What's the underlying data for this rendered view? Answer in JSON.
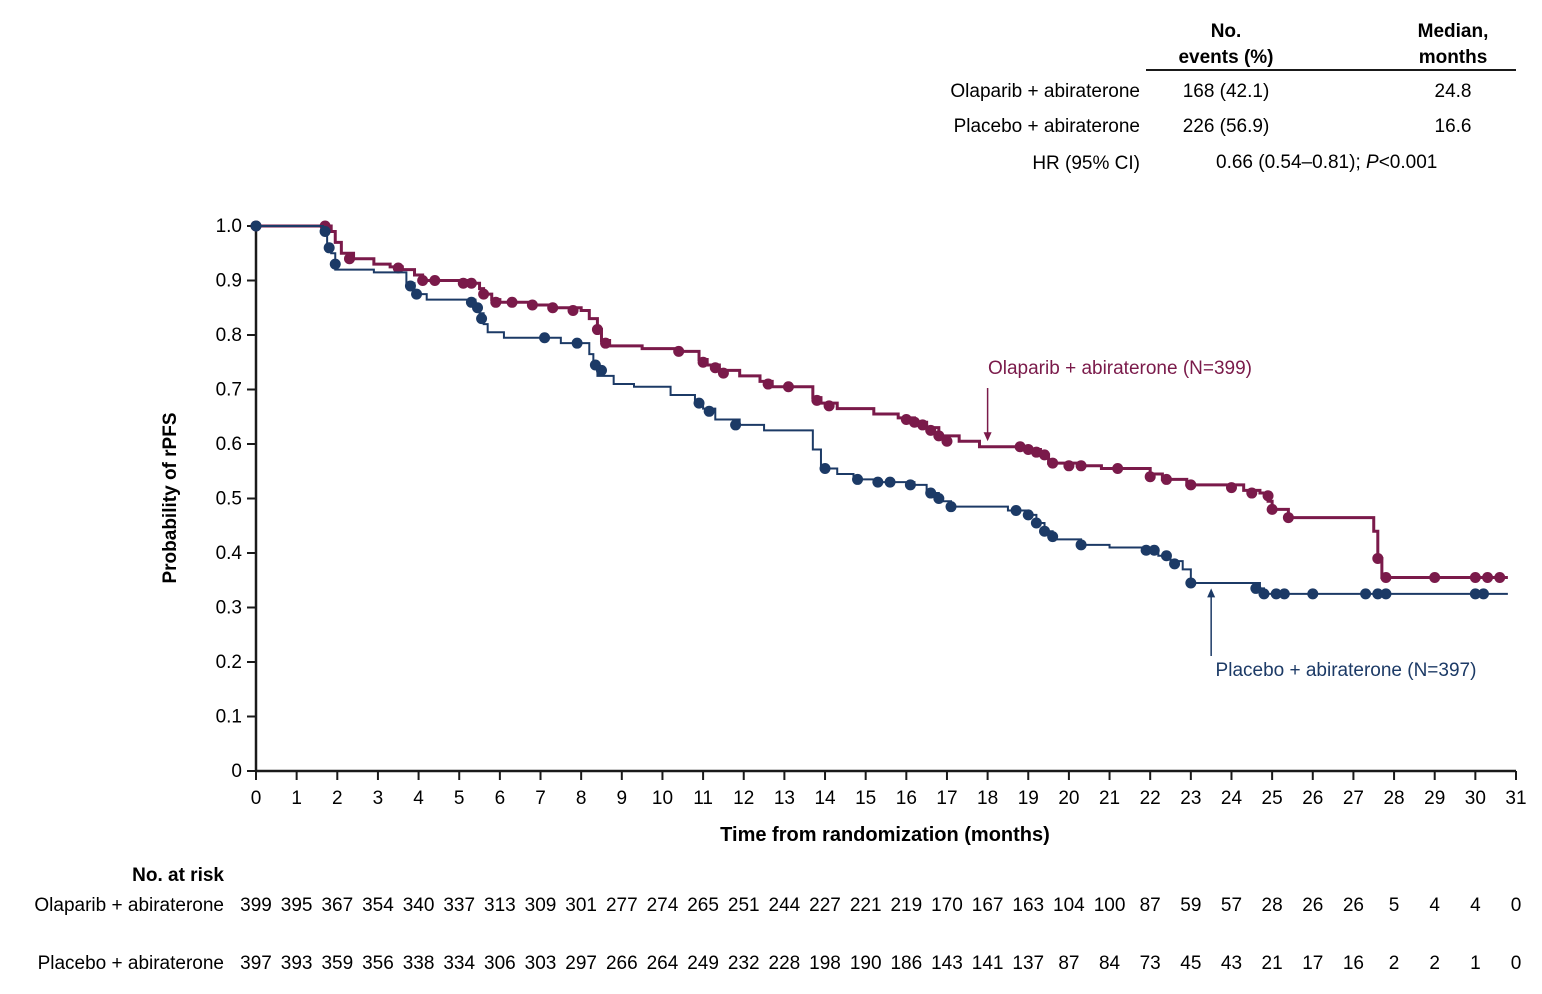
{
  "summary_table": {
    "col_events": [
      "No.",
      "events (%)"
    ],
    "col_median": [
      "Median,",
      "months"
    ],
    "rows": [
      {
        "label": "Olaparib + abiraterone",
        "events": "168 (42.1)",
        "median": "24.8"
      },
      {
        "label": "Placebo + abiraterone",
        "events": "226 (56.9)",
        "median": "16.6"
      }
    ],
    "hr_label": "HR (95% CI)",
    "hr_value": "0.66 (0.54–0.81); ",
    "hr_p_italic": "P",
    "hr_p_rest": "<0.001"
  },
  "chart_data": {
    "type": "line",
    "subtype": "kaplan-meier",
    "title": "",
    "xlabel": "Time from randomization (months)",
    "ylabel": "Probability of rPFS",
    "xlim": [
      0,
      31
    ],
    "ylim": [
      0,
      1.0
    ],
    "xticks": [
      0,
      1,
      2,
      3,
      4,
      5,
      6,
      7,
      8,
      9,
      10,
      11,
      12,
      13,
      14,
      15,
      16,
      17,
      18,
      19,
      20,
      21,
      22,
      23,
      24,
      25,
      26,
      27,
      28,
      29,
      30,
      31
    ],
    "yticks": [
      "0",
      "0.1",
      "0.2",
      "0.3",
      "0.4",
      "0.5",
      "0.6",
      "0.7",
      "0.8",
      "0.9",
      "1.0"
    ],
    "series": [
      {
        "name": "Olaparib + abiraterone",
        "label": "Olaparib + abiraterone (N=399)",
        "color": "#7a1a4a",
        "steps": [
          [
            0,
            1.0
          ],
          [
            1.85,
            0.99
          ],
          [
            1.95,
            0.97
          ],
          [
            2.1,
            0.95
          ],
          [
            2.4,
            0.94
          ],
          [
            2.9,
            0.93
          ],
          [
            3.3,
            0.925
          ],
          [
            3.6,
            0.92
          ],
          [
            3.9,
            0.91
          ],
          [
            4.1,
            0.9
          ],
          [
            5.3,
            0.895
          ],
          [
            5.5,
            0.885
          ],
          [
            5.6,
            0.875
          ],
          [
            5.8,
            0.865
          ],
          [
            6.0,
            0.86
          ],
          [
            6.8,
            0.855
          ],
          [
            7.3,
            0.85
          ],
          [
            8.0,
            0.845
          ],
          [
            8.2,
            0.83
          ],
          [
            8.4,
            0.81
          ],
          [
            8.5,
            0.79
          ],
          [
            8.7,
            0.78
          ],
          [
            9.5,
            0.775
          ],
          [
            10.4,
            0.77
          ],
          [
            10.9,
            0.755
          ],
          [
            11.1,
            0.745
          ],
          [
            11.4,
            0.735
          ],
          [
            11.9,
            0.725
          ],
          [
            12.4,
            0.715
          ],
          [
            12.7,
            0.705
          ],
          [
            13.7,
            0.685
          ],
          [
            13.9,
            0.675
          ],
          [
            14.3,
            0.665
          ],
          [
            15.2,
            0.655
          ],
          [
            15.8,
            0.648
          ],
          [
            16.2,
            0.64
          ],
          [
            16.5,
            0.63
          ],
          [
            16.8,
            0.615
          ],
          [
            17.3,
            0.605
          ],
          [
            17.8,
            0.595
          ],
          [
            18.9,
            0.59
          ],
          [
            19.3,
            0.58
          ],
          [
            19.5,
            0.565
          ],
          [
            20.3,
            0.56
          ],
          [
            20.8,
            0.555
          ],
          [
            22.0,
            0.545
          ],
          [
            22.3,
            0.535
          ],
          [
            22.9,
            0.525
          ],
          [
            24.3,
            0.515
          ],
          [
            24.7,
            0.51
          ],
          [
            24.9,
            0.495
          ],
          [
            25.0,
            0.48
          ],
          [
            25.4,
            0.465
          ],
          [
            27.5,
            0.44
          ],
          [
            27.6,
            0.39
          ],
          [
            27.7,
            0.355
          ],
          [
            30.8,
            0.355
          ]
        ],
        "censored": [
          [
            0,
            1.0
          ],
          [
            1.7,
            1.0
          ],
          [
            2.3,
            0.94
          ],
          [
            3.5,
            0.923
          ],
          [
            4.1,
            0.9
          ],
          [
            4.4,
            0.9
          ],
          [
            5.1,
            0.895
          ],
          [
            5.3,
            0.895
          ],
          [
            5.6,
            0.875
          ],
          [
            5.9,
            0.86
          ],
          [
            6.3,
            0.86
          ],
          [
            6.8,
            0.855
          ],
          [
            7.3,
            0.85
          ],
          [
            7.8,
            0.845
          ],
          [
            8.4,
            0.81
          ],
          [
            8.6,
            0.785
          ],
          [
            10.4,
            0.77
          ],
          [
            11.0,
            0.75
          ],
          [
            11.3,
            0.74
          ],
          [
            11.5,
            0.73
          ],
          [
            12.6,
            0.71
          ],
          [
            13.1,
            0.705
          ],
          [
            13.8,
            0.68
          ],
          [
            14.1,
            0.67
          ],
          [
            16.0,
            0.645
          ],
          [
            16.2,
            0.64
          ],
          [
            16.4,
            0.635
          ],
          [
            16.6,
            0.625
          ],
          [
            16.8,
            0.615
          ],
          [
            17.0,
            0.605
          ],
          [
            18.8,
            0.595
          ],
          [
            19.0,
            0.59
          ],
          [
            19.2,
            0.585
          ],
          [
            19.4,
            0.58
          ],
          [
            19.6,
            0.565
          ],
          [
            20.0,
            0.56
          ],
          [
            20.3,
            0.56
          ],
          [
            21.2,
            0.555
          ],
          [
            22.0,
            0.54
          ],
          [
            22.4,
            0.535
          ],
          [
            23.0,
            0.525
          ],
          [
            24.0,
            0.52
          ],
          [
            24.5,
            0.51
          ],
          [
            24.9,
            0.505
          ],
          [
            25.0,
            0.48
          ],
          [
            25.4,
            0.465
          ],
          [
            27.6,
            0.39
          ],
          [
            27.8,
            0.355
          ],
          [
            29.0,
            0.355
          ],
          [
            30.0,
            0.355
          ],
          [
            30.3,
            0.355
          ],
          [
            30.6,
            0.355
          ]
        ]
      },
      {
        "name": "Placebo + abiraterone",
        "label": "Placebo + abiraterone (N=397)",
        "color": "#1c3a66",
        "steps": [
          [
            0,
            1.0
          ],
          [
            1.65,
            0.99
          ],
          [
            1.75,
            0.965
          ],
          [
            1.85,
            0.95
          ],
          [
            1.95,
            0.92
          ],
          [
            2.9,
            0.915
          ],
          [
            3.7,
            0.895
          ],
          [
            3.9,
            0.875
          ],
          [
            4.2,
            0.865
          ],
          [
            5.4,
            0.855
          ],
          [
            5.5,
            0.84
          ],
          [
            5.6,
            0.82
          ],
          [
            5.7,
            0.805
          ],
          [
            6.1,
            0.795
          ],
          [
            7.5,
            0.785
          ],
          [
            8.2,
            0.765
          ],
          [
            8.3,
            0.745
          ],
          [
            8.4,
            0.725
          ],
          [
            8.8,
            0.71
          ],
          [
            9.3,
            0.705
          ],
          [
            10.2,
            0.69
          ],
          [
            10.8,
            0.675
          ],
          [
            11.0,
            0.665
          ],
          [
            11.3,
            0.645
          ],
          [
            11.9,
            0.635
          ],
          [
            12.5,
            0.625
          ],
          [
            13.7,
            0.59
          ],
          [
            13.9,
            0.555
          ],
          [
            14.3,
            0.545
          ],
          [
            14.7,
            0.535
          ],
          [
            15.2,
            0.53
          ],
          [
            16.2,
            0.525
          ],
          [
            16.5,
            0.51
          ],
          [
            16.8,
            0.495
          ],
          [
            17.1,
            0.485
          ],
          [
            18.5,
            0.478
          ],
          [
            19.0,
            0.47
          ],
          [
            19.2,
            0.455
          ],
          [
            19.4,
            0.44
          ],
          [
            19.6,
            0.425
          ],
          [
            20.3,
            0.415
          ],
          [
            21.0,
            0.41
          ],
          [
            22.0,
            0.405
          ],
          [
            22.2,
            0.395
          ],
          [
            22.5,
            0.385
          ],
          [
            22.8,
            0.37
          ],
          [
            23.0,
            0.345
          ],
          [
            24.7,
            0.335
          ],
          [
            24.8,
            0.325
          ],
          [
            30.8,
            0.325
          ]
        ],
        "censored": [
          [
            0,
            1.0
          ],
          [
            1.7,
            0.99
          ],
          [
            1.8,
            0.96
          ],
          [
            1.95,
            0.93
          ],
          [
            3.8,
            0.89
          ],
          [
            3.95,
            0.875
          ],
          [
            5.3,
            0.86
          ],
          [
            5.45,
            0.85
          ],
          [
            5.55,
            0.83
          ],
          [
            7.1,
            0.795
          ],
          [
            7.9,
            0.785
          ],
          [
            8.35,
            0.745
          ],
          [
            8.5,
            0.735
          ],
          [
            10.9,
            0.675
          ],
          [
            11.15,
            0.66
          ],
          [
            11.8,
            0.635
          ],
          [
            14.0,
            0.555
          ],
          [
            14.8,
            0.535
          ],
          [
            15.3,
            0.53
          ],
          [
            15.6,
            0.53
          ],
          [
            16.1,
            0.525
          ],
          [
            16.6,
            0.51
          ],
          [
            16.8,
            0.5
          ],
          [
            17.1,
            0.485
          ],
          [
            18.7,
            0.478
          ],
          [
            19.0,
            0.47
          ],
          [
            19.2,
            0.455
          ],
          [
            19.4,
            0.44
          ],
          [
            19.6,
            0.43
          ],
          [
            20.3,
            0.415
          ],
          [
            21.9,
            0.405
          ],
          [
            22.1,
            0.405
          ],
          [
            22.4,
            0.395
          ],
          [
            22.6,
            0.38
          ],
          [
            23.0,
            0.345
          ],
          [
            24.6,
            0.335
          ],
          [
            24.8,
            0.325
          ],
          [
            25.1,
            0.325
          ],
          [
            25.3,
            0.325
          ],
          [
            26.0,
            0.325
          ],
          [
            27.3,
            0.325
          ],
          [
            27.6,
            0.325
          ],
          [
            27.8,
            0.325
          ],
          [
            30.0,
            0.325
          ],
          [
            30.2,
            0.325
          ]
        ]
      }
    ],
    "annotations": [
      {
        "series": 0,
        "text": "Olaparib + abiraterone (N=399)",
        "arrow_to": [
          18.0,
          0.605
        ]
      },
      {
        "series": 1,
        "text": "Placebo + abiraterone (N=397)",
        "arrow_to": [
          23.5,
          0.335
        ]
      }
    ]
  },
  "risk_table": {
    "title": "No. at risk",
    "rows": [
      {
        "label": "Olaparib + abiraterone",
        "values": [
          "399",
          "395",
          "367",
          "354",
          "340",
          "337",
          "313",
          "309",
          "301",
          "277",
          "274",
          "265",
          "251",
          "244",
          "227",
          "221",
          "219",
          "170",
          "167",
          "163",
          "104",
          "100",
          "87",
          "59",
          "57",
          "28",
          "26",
          "26",
          "5",
          "4",
          "4",
          "0"
        ]
      },
      {
        "label": "Placebo + abiraterone",
        "values": [
          "397",
          "393",
          "359",
          "356",
          "338",
          "334",
          "306",
          "303",
          "297",
          "266",
          "264",
          "249",
          "232",
          "228",
          "198",
          "190",
          "186",
          "143",
          "141",
          "137",
          "87",
          "84",
          "73",
          "45",
          "43",
          "21",
          "17",
          "16",
          "2",
          "2",
          "1",
          "0"
        ]
      }
    ]
  }
}
